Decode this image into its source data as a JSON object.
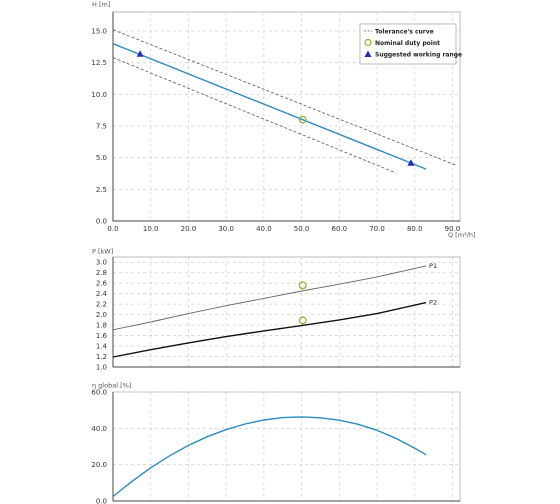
{
  "chart_data": [
    {
      "type": "line",
      "ylabel": "H [m]",
      "xlabel": "Q [m³/h]",
      "xlim": [
        0,
        92
      ],
      "ylim": [
        0,
        16.5
      ],
      "x_ticks": [
        "0.0",
        "10.0",
        "20.0",
        "30.0",
        "40.0",
        "50.0",
        "60.0",
        "70.0",
        "80.0",
        "90.0"
      ],
      "y_ticks": [
        "0.0",
        "2.5",
        "5.0",
        "7.5",
        "10.0",
        "12.5",
        "15.0"
      ],
      "grid": true,
      "legend_position": "top-right",
      "legend": [
        {
          "label": "Tolerance's curve",
          "symbol": "dashed-line"
        },
        {
          "label": "Nominal duty point",
          "symbol": "open-circle"
        },
        {
          "label": "Suggested working range",
          "symbol": "triangle"
        }
      ],
      "series": [
        {
          "role": "curve",
          "x": [
            0,
            83
          ],
          "y": [
            14.0,
            4.1
          ]
        },
        {
          "role": "tolerance-upper",
          "x": [
            0,
            91
          ],
          "y": [
            15.1,
            4.4
          ]
        },
        {
          "role": "tolerance-lower",
          "x": [
            0,
            75
          ],
          "y": [
            12.9,
            3.8
          ]
        }
      ],
      "duty_point": {
        "x": 50.3,
        "y": 8.0
      },
      "working_range": [
        {
          "x": 7.2,
          "y": 13.2
        },
        {
          "x": 79.0,
          "y": 4.6
        }
      ]
    },
    {
      "type": "line",
      "ylabel": "P [kW]",
      "xlim": [
        0,
        92
      ],
      "ylim": [
        1.0,
        3.1
      ],
      "y_ticks": [
        "1.0",
        "1.2",
        "1.4",
        "1.6",
        "1.8",
        "2.0",
        "2.2",
        "2.4",
        "2.6",
        "2.8",
        "3.0"
      ],
      "grid": true,
      "series": [
        {
          "name": "P1",
          "x": [
            0,
            10,
            20,
            30,
            40,
            50,
            60,
            70,
            83
          ],
          "y": [
            1.71,
            1.86,
            2.02,
            2.17,
            2.31,
            2.45,
            2.58,
            2.72,
            2.93
          ]
        },
        {
          "name": "P2",
          "x": [
            0,
            10,
            20,
            30,
            40,
            50,
            60,
            70,
            83
          ],
          "y": [
            1.19,
            1.33,
            1.46,
            1.58,
            1.69,
            1.79,
            1.9,
            2.02,
            2.23
          ]
        }
      ],
      "duty_points": [
        {
          "x": 50.3,
          "y": 2.56
        },
        {
          "x": 50.3,
          "y": 1.89
        }
      ]
    },
    {
      "type": "line",
      "ylabel": "η global [%]",
      "xlim": [
        0,
        92
      ],
      "ylim": [
        0,
        60
      ],
      "y_ticks": [
        "0.0",
        "20.0",
        "40.0",
        "60.0"
      ],
      "grid": true,
      "series": [
        {
          "x": [
            0,
            5,
            10,
            15,
            20,
            25,
            30,
            35,
            40,
            45,
            50,
            55,
            60,
            65,
            70,
            75,
            80,
            83
          ],
          "y": [
            2.5,
            10.8,
            18.3,
            24.9,
            30.6,
            35.4,
            39.3,
            42.4,
            44.6,
            45.9,
            46.3,
            45.8,
            44.5,
            42.2,
            38.9,
            34.5,
            29.0,
            25.5
          ]
        }
      ]
    }
  ]
}
